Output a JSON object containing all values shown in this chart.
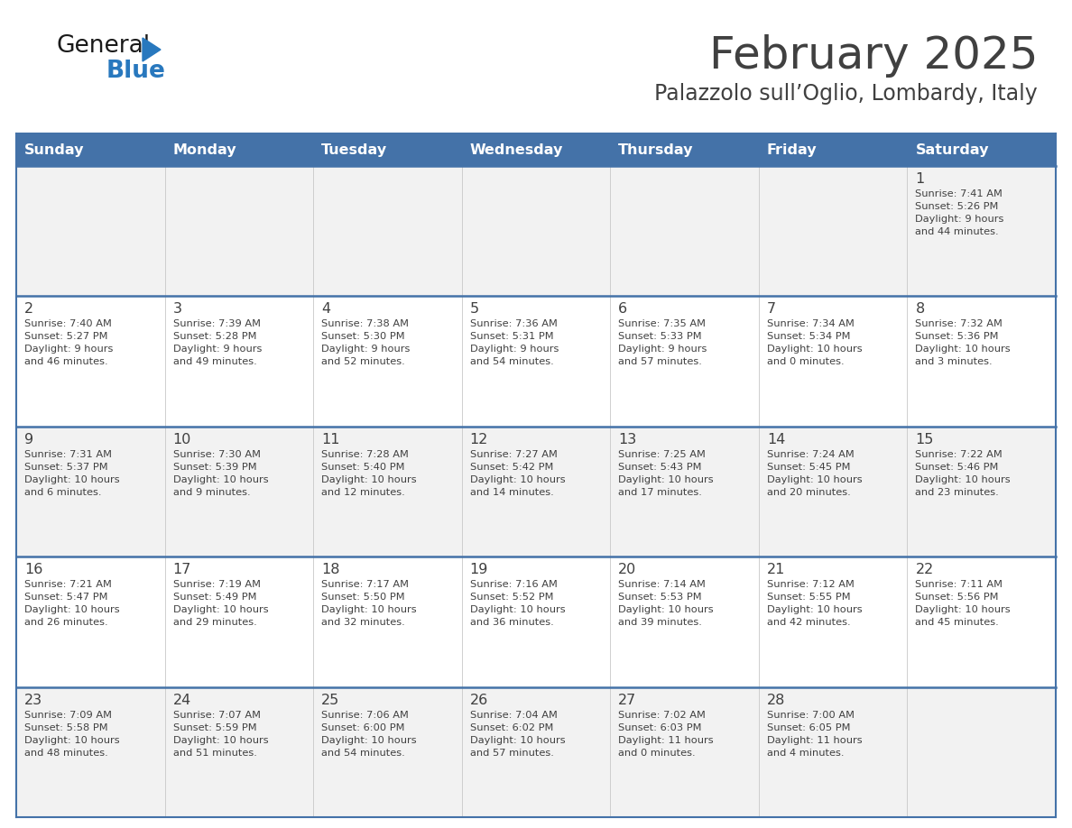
{
  "title": "February 2025",
  "subtitle": "Palazzolo sull’Oglio, Lombardy, Italy",
  "header_bg": "#4472a8",
  "header_text": "#ffffff",
  "cell_bg": "#f2f2f2",
  "cell_bg_alt": "#ffffff",
  "separator_color": "#4472a8",
  "text_color": "#404040",
  "days_of_week": [
    "Sunday",
    "Monday",
    "Tuesday",
    "Wednesday",
    "Thursday",
    "Friday",
    "Saturday"
  ],
  "weeks": [
    [
      {
        "day": "",
        "info": ""
      },
      {
        "day": "",
        "info": ""
      },
      {
        "day": "",
        "info": ""
      },
      {
        "day": "",
        "info": ""
      },
      {
        "day": "",
        "info": ""
      },
      {
        "day": "",
        "info": ""
      },
      {
        "day": "1",
        "info": "Sunrise: 7:41 AM\nSunset: 5:26 PM\nDaylight: 9 hours\nand 44 minutes."
      }
    ],
    [
      {
        "day": "2",
        "info": "Sunrise: 7:40 AM\nSunset: 5:27 PM\nDaylight: 9 hours\nand 46 minutes."
      },
      {
        "day": "3",
        "info": "Sunrise: 7:39 AM\nSunset: 5:28 PM\nDaylight: 9 hours\nand 49 minutes."
      },
      {
        "day": "4",
        "info": "Sunrise: 7:38 AM\nSunset: 5:30 PM\nDaylight: 9 hours\nand 52 minutes."
      },
      {
        "day": "5",
        "info": "Sunrise: 7:36 AM\nSunset: 5:31 PM\nDaylight: 9 hours\nand 54 minutes."
      },
      {
        "day": "6",
        "info": "Sunrise: 7:35 AM\nSunset: 5:33 PM\nDaylight: 9 hours\nand 57 minutes."
      },
      {
        "day": "7",
        "info": "Sunrise: 7:34 AM\nSunset: 5:34 PM\nDaylight: 10 hours\nand 0 minutes."
      },
      {
        "day": "8",
        "info": "Sunrise: 7:32 AM\nSunset: 5:36 PM\nDaylight: 10 hours\nand 3 minutes."
      }
    ],
    [
      {
        "day": "9",
        "info": "Sunrise: 7:31 AM\nSunset: 5:37 PM\nDaylight: 10 hours\nand 6 minutes."
      },
      {
        "day": "10",
        "info": "Sunrise: 7:30 AM\nSunset: 5:39 PM\nDaylight: 10 hours\nand 9 minutes."
      },
      {
        "day": "11",
        "info": "Sunrise: 7:28 AM\nSunset: 5:40 PM\nDaylight: 10 hours\nand 12 minutes."
      },
      {
        "day": "12",
        "info": "Sunrise: 7:27 AM\nSunset: 5:42 PM\nDaylight: 10 hours\nand 14 minutes."
      },
      {
        "day": "13",
        "info": "Sunrise: 7:25 AM\nSunset: 5:43 PM\nDaylight: 10 hours\nand 17 minutes."
      },
      {
        "day": "14",
        "info": "Sunrise: 7:24 AM\nSunset: 5:45 PM\nDaylight: 10 hours\nand 20 minutes."
      },
      {
        "day": "15",
        "info": "Sunrise: 7:22 AM\nSunset: 5:46 PM\nDaylight: 10 hours\nand 23 minutes."
      }
    ],
    [
      {
        "day": "16",
        "info": "Sunrise: 7:21 AM\nSunset: 5:47 PM\nDaylight: 10 hours\nand 26 minutes."
      },
      {
        "day": "17",
        "info": "Sunrise: 7:19 AM\nSunset: 5:49 PM\nDaylight: 10 hours\nand 29 minutes."
      },
      {
        "day": "18",
        "info": "Sunrise: 7:17 AM\nSunset: 5:50 PM\nDaylight: 10 hours\nand 32 minutes."
      },
      {
        "day": "19",
        "info": "Sunrise: 7:16 AM\nSunset: 5:52 PM\nDaylight: 10 hours\nand 36 minutes."
      },
      {
        "day": "20",
        "info": "Sunrise: 7:14 AM\nSunset: 5:53 PM\nDaylight: 10 hours\nand 39 minutes."
      },
      {
        "day": "21",
        "info": "Sunrise: 7:12 AM\nSunset: 5:55 PM\nDaylight: 10 hours\nand 42 minutes."
      },
      {
        "day": "22",
        "info": "Sunrise: 7:11 AM\nSunset: 5:56 PM\nDaylight: 10 hours\nand 45 minutes."
      }
    ],
    [
      {
        "day": "23",
        "info": "Sunrise: 7:09 AM\nSunset: 5:58 PM\nDaylight: 10 hours\nand 48 minutes."
      },
      {
        "day": "24",
        "info": "Sunrise: 7:07 AM\nSunset: 5:59 PM\nDaylight: 10 hours\nand 51 minutes."
      },
      {
        "day": "25",
        "info": "Sunrise: 7:06 AM\nSunset: 6:00 PM\nDaylight: 10 hours\nand 54 minutes."
      },
      {
        "day": "26",
        "info": "Sunrise: 7:04 AM\nSunset: 6:02 PM\nDaylight: 10 hours\nand 57 minutes."
      },
      {
        "day": "27",
        "info": "Sunrise: 7:02 AM\nSunset: 6:03 PM\nDaylight: 11 hours\nand 0 minutes."
      },
      {
        "day": "28",
        "info": "Sunrise: 7:00 AM\nSunset: 6:05 PM\nDaylight: 11 hours\nand 4 minutes."
      },
      {
        "day": "",
        "info": ""
      }
    ]
  ],
  "logo_color_general": "#1a1a1a",
  "logo_color_blue": "#2878be",
  "logo_triangle_color": "#2878be"
}
